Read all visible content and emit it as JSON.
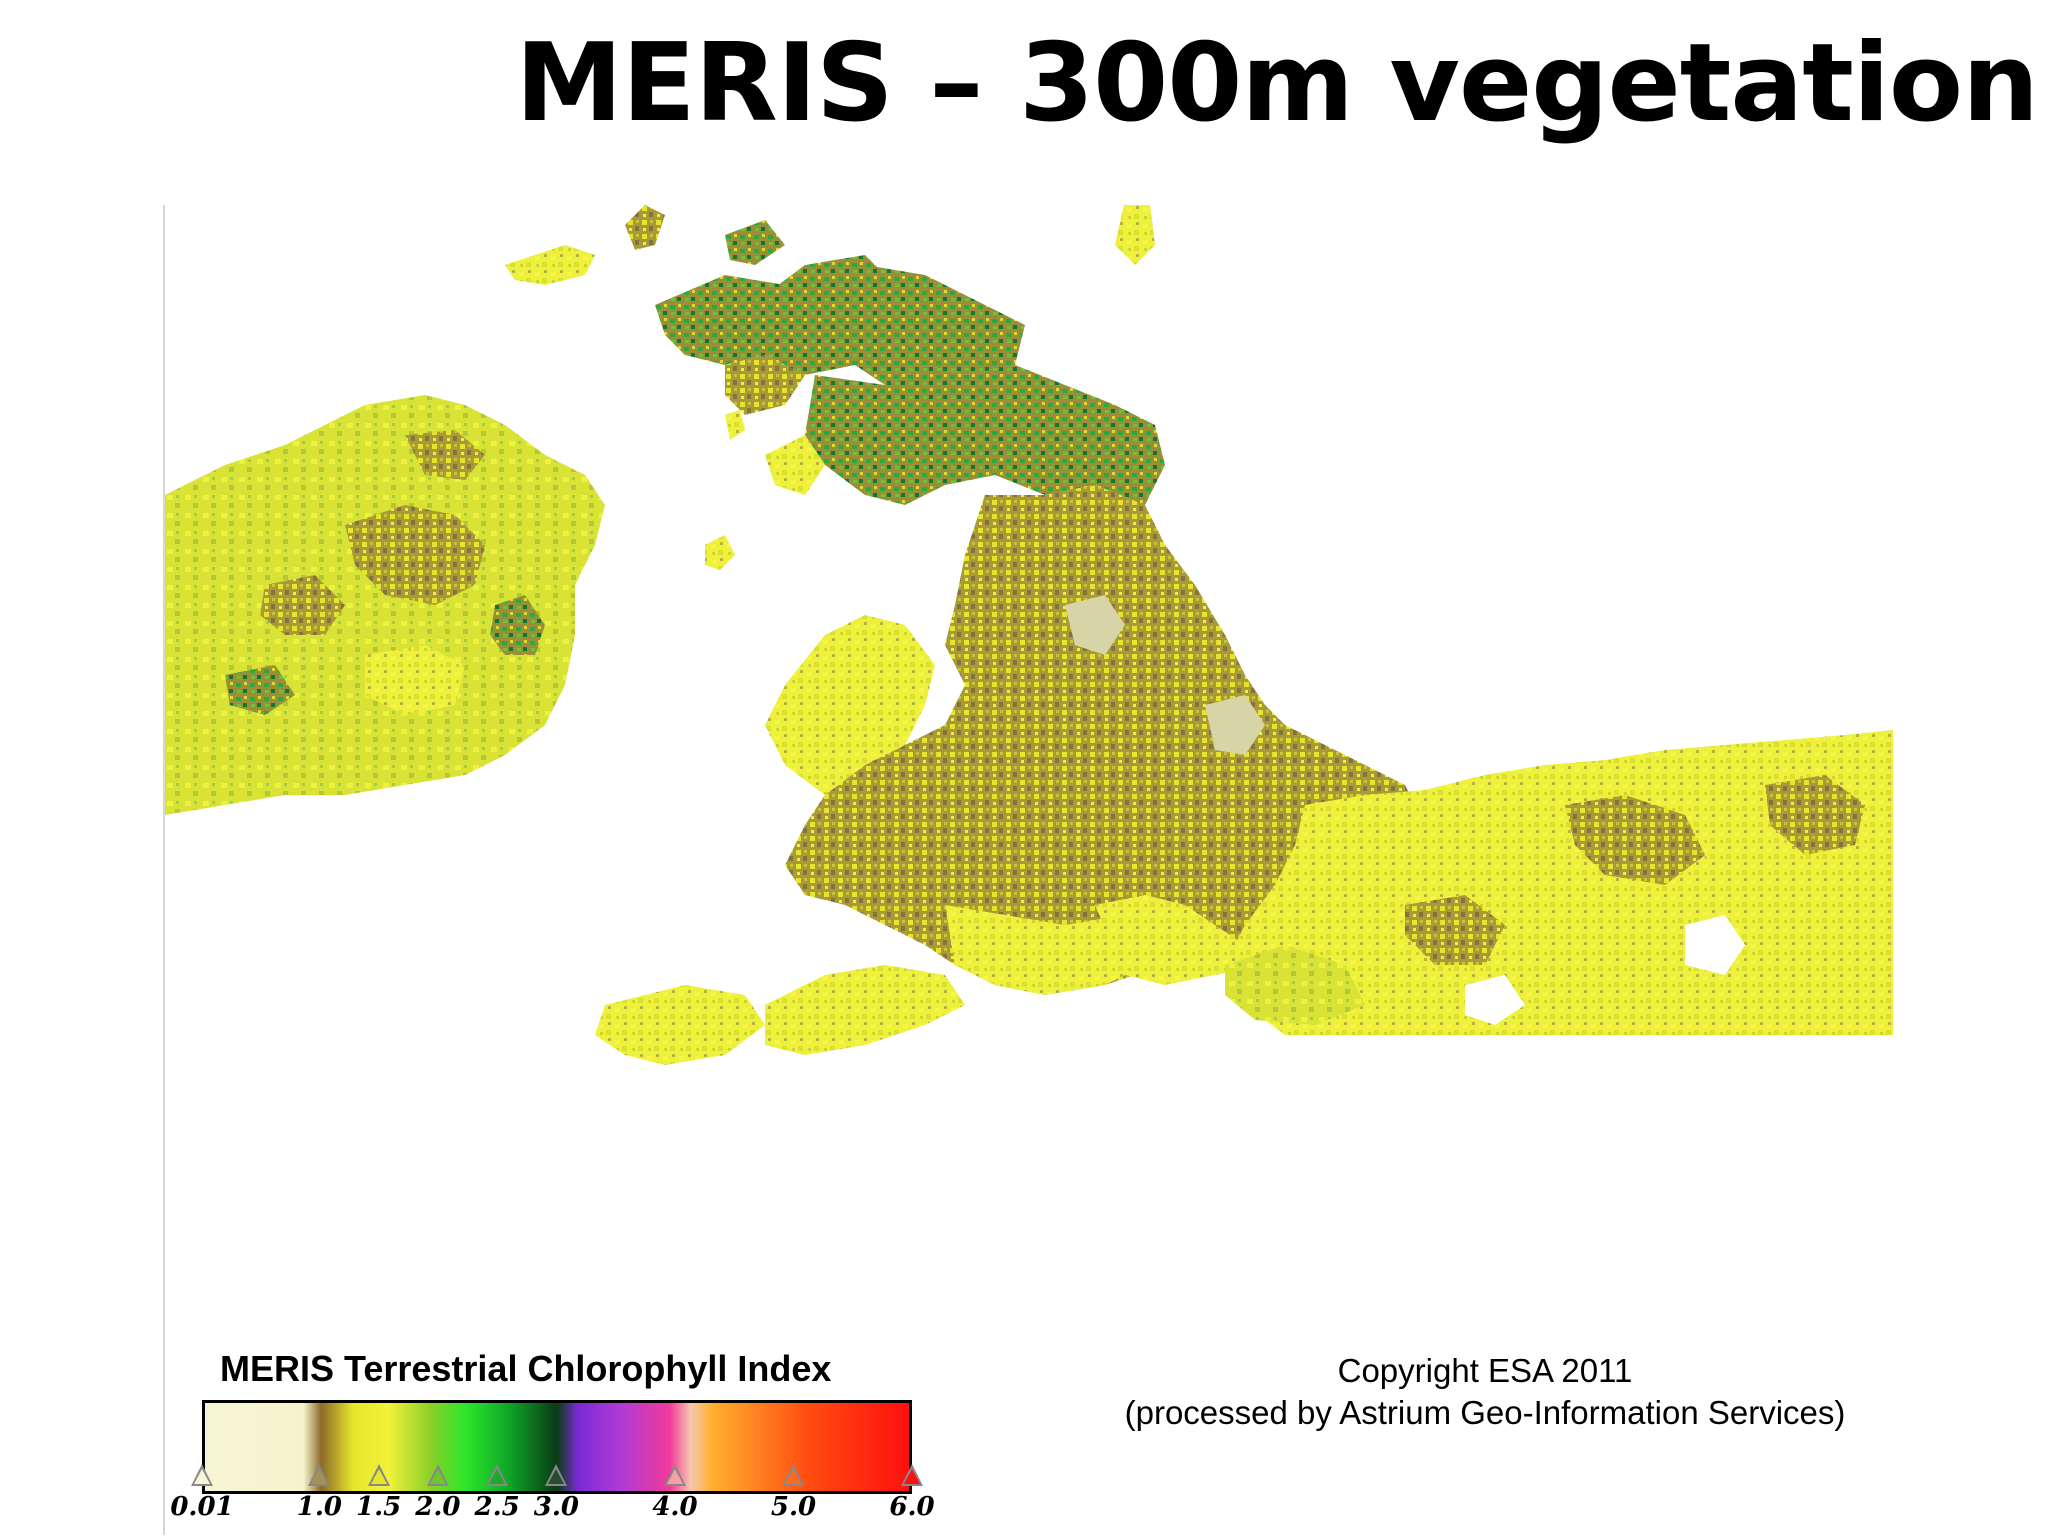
{
  "slide": {
    "title": "MERIS – 300m vegetation"
  },
  "map": {
    "subject": "British Isles and northern France chlorophyll index composite",
    "background_color": "#ffffff",
    "land_colors": [
      "#f5f040",
      "#e8ee2a",
      "#c7d631",
      "#a8a03a",
      "#8c7d3a",
      "#7fd13a",
      "#2fbf3a",
      "#0f8a2c",
      "#cfcc9a"
    ]
  },
  "legend": {
    "title": "MERIS Terrestrial Chlorophyll Index",
    "gradient_stops": [
      {
        "pos": 0.0,
        "color": "#f6f6d6"
      },
      {
        "pos": 0.14,
        "color": "#f5f3cc"
      },
      {
        "pos": 0.165,
        "color": "#8c6a2a"
      },
      {
        "pos": 0.21,
        "color": "#e6e62a"
      },
      {
        "pos": 0.26,
        "color": "#f2f23a"
      },
      {
        "pos": 0.32,
        "color": "#8ccf2a"
      },
      {
        "pos": 0.37,
        "color": "#2ce62a"
      },
      {
        "pos": 0.43,
        "color": "#0fa82a"
      },
      {
        "pos": 0.5,
        "color": "#0a3a14"
      },
      {
        "pos": 0.53,
        "color": "#7a2ad6"
      },
      {
        "pos": 0.59,
        "color": "#b03ad6"
      },
      {
        "pos": 0.66,
        "color": "#f03a9a"
      },
      {
        "pos": 0.69,
        "color": "#f6c7b0"
      },
      {
        "pos": 0.72,
        "color": "#ffb030"
      },
      {
        "pos": 0.86,
        "color": "#ff4a10"
      },
      {
        "pos": 1.0,
        "color": "#ff1010"
      }
    ],
    "ticks": [
      {
        "label": "0.01",
        "value": 0.01,
        "color": "#f6f6d6"
      },
      {
        "label": "1.0",
        "value": 1.0,
        "color": "#a89050"
      },
      {
        "label": "1.5",
        "value": 1.5,
        "color": "#e6e62a"
      },
      {
        "label": "2.0",
        "value": 2.0,
        "color": "#6ec82a"
      },
      {
        "label": "2.5",
        "value": 2.5,
        "color": "#1caa2a"
      },
      {
        "label": "3.0",
        "value": 3.0,
        "color": "#2a4a30"
      },
      {
        "label": "4.0",
        "value": 4.0,
        "color": "#f6a0a0"
      },
      {
        "label": "5.0",
        "value": 5.0,
        "color": "#ff6a20"
      },
      {
        "label": "6.0",
        "value": 6.0,
        "color": "#ff1010"
      }
    ],
    "range": [
      0.01,
      6.0
    ]
  },
  "copyright": {
    "line1": "Copyright ESA 2011",
    "line2": "(processed by Astrium Geo-Information Services)"
  }
}
